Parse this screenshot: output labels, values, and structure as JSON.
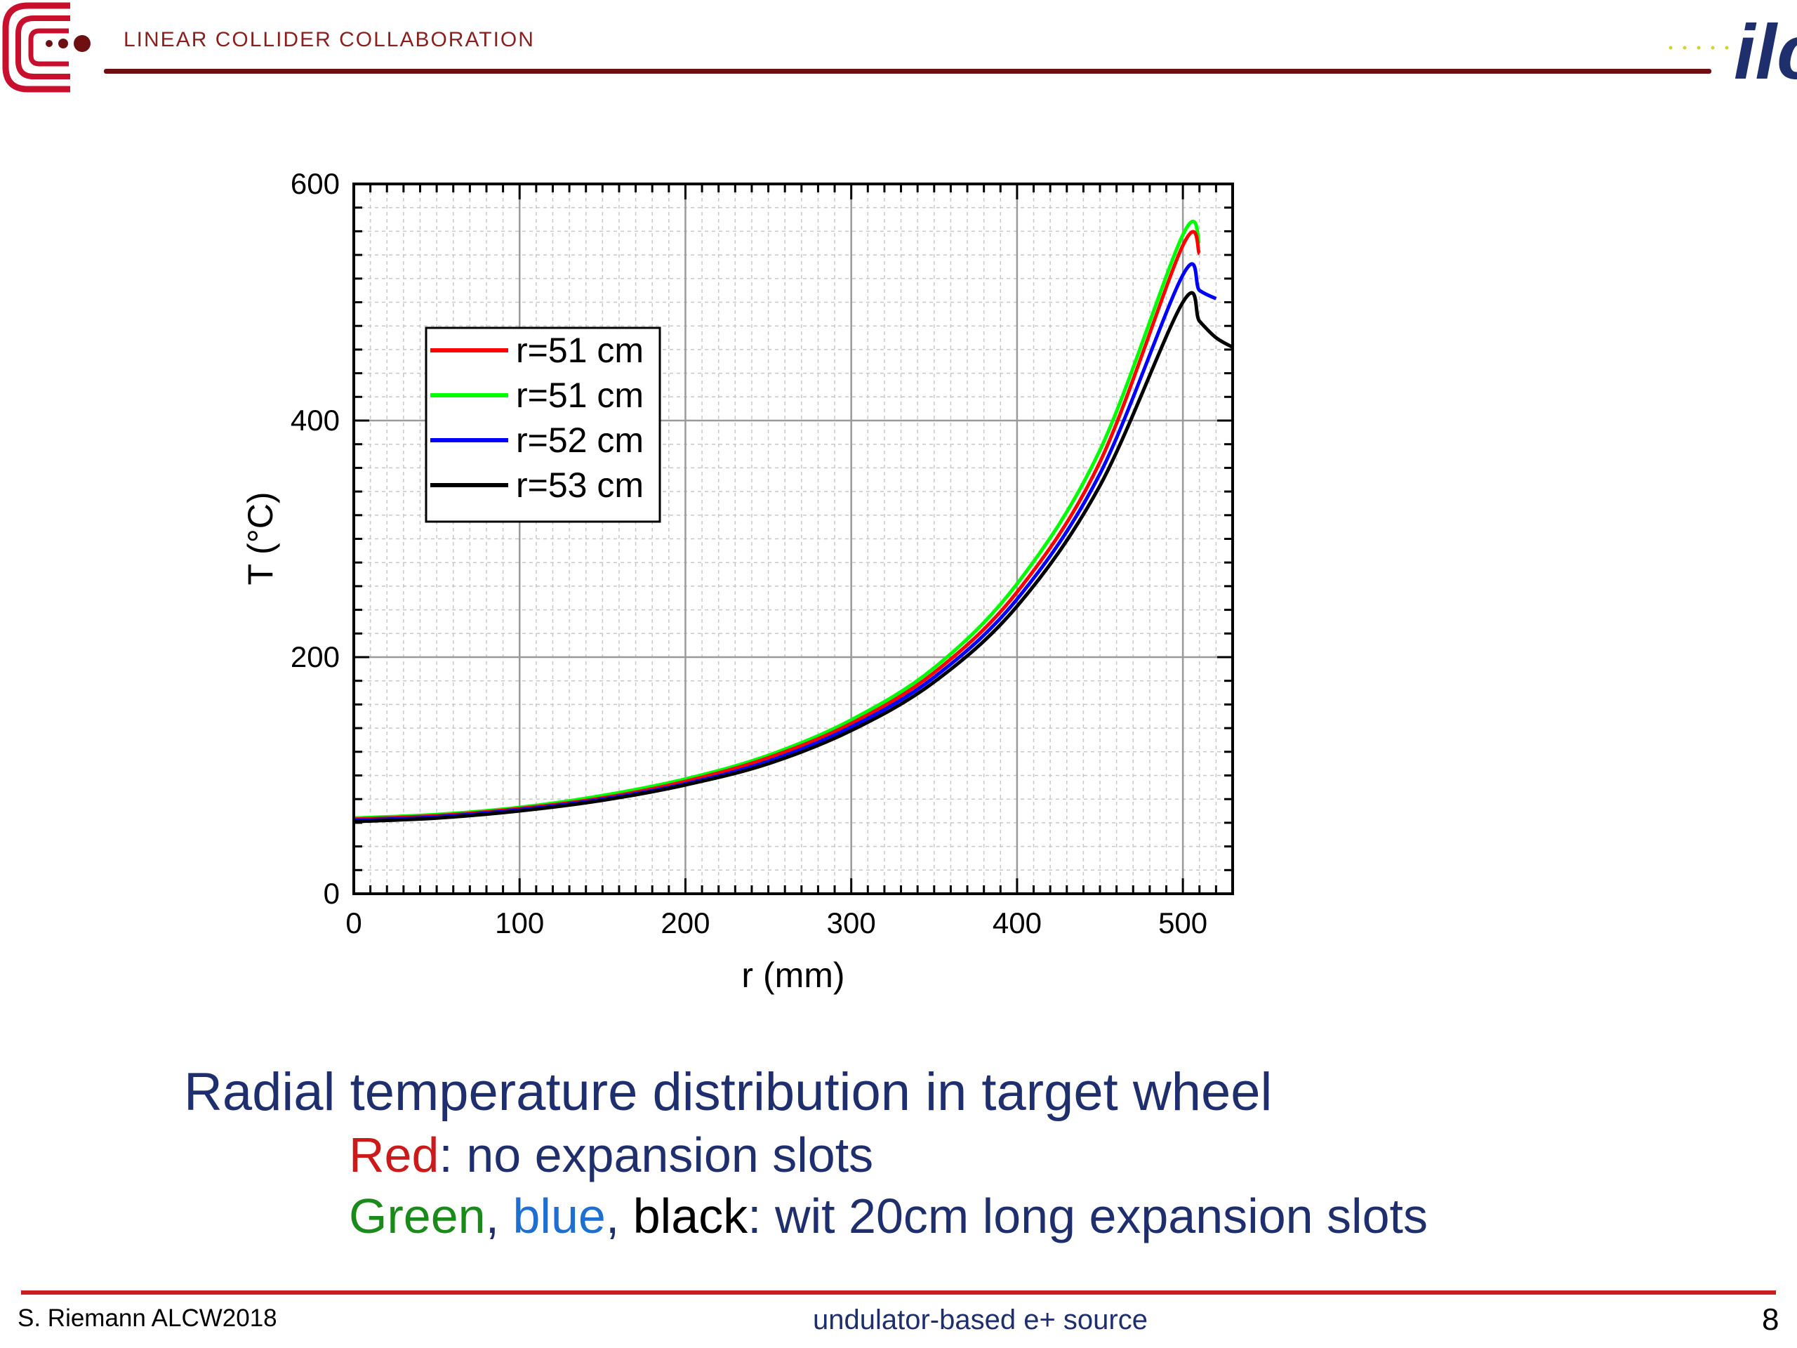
{
  "header": {
    "org_name": "LINEAR COLLIDER COLLABORATION",
    "logo_left": "lcc-logo",
    "logo_right": "ilc-logo",
    "logo_right_text": "ilc",
    "brand_color": "#8a1f1f",
    "rule_color": "#6e0f12"
  },
  "chart_data": {
    "type": "line",
    "title": "",
    "xlabel": "r (mm)",
    "ylabel": "T (°C)",
    "xlim": [
      0,
      530
    ],
    "ylim": [
      0,
      600
    ],
    "xticks": [
      0,
      100,
      200,
      300,
      400,
      500
    ],
    "yticks": [
      0,
      200,
      400,
      600
    ],
    "grid": true,
    "legend_position": "top-left",
    "series": [
      {
        "name": "r=51 cm",
        "color": "#ff0000",
        "x": [
          0,
          50,
          100,
          150,
          200,
          250,
          300,
          350,
          400,
          450,
          500,
          510
        ],
        "y": [
          63,
          66,
          72,
          81,
          95,
          115,
          144,
          187,
          255,
          365,
          548,
          541
        ]
      },
      {
        "name": "r=51 cm",
        "color": "#00ff00",
        "x": [
          0,
          50,
          100,
          150,
          200,
          250,
          300,
          350,
          400,
          450,
          500,
          510
        ],
        "y": [
          64,
          67,
          73,
          83,
          97,
          117,
          147,
          191,
          262,
          375,
          557,
          549
        ]
      },
      {
        "name": "r=52 cm",
        "color": "#0000ff",
        "x": [
          0,
          50,
          100,
          150,
          200,
          250,
          300,
          350,
          400,
          450,
          500,
          510,
          520
        ],
        "y": [
          62,
          65,
          71,
          80,
          93,
          112,
          141,
          183,
          249,
          355,
          523,
          510,
          503
        ]
      },
      {
        "name": "r=53 cm",
        "color": "#000000",
        "x": [
          0,
          50,
          100,
          150,
          200,
          250,
          300,
          350,
          400,
          450,
          500,
          510,
          520,
          530
        ],
        "y": [
          61,
          64,
          70,
          79,
          92,
          110,
          138,
          179,
          243,
          345,
          500,
          484,
          470,
          462
        ]
      }
    ]
  },
  "caption": {
    "title": "Radial temperature distribution in target wheel",
    "line1_colored": "Red",
    "line1_rest": ": no expansion slots",
    "line2_green": "Green",
    "line2_sep1": ", ",
    "line2_blue": "blue",
    "line2_sep2": ", ",
    "line2_black": "black",
    "line2_rest": ": wit 20cm long expansion slots",
    "colors": {
      "red": "#cc1a1a",
      "green": "#1a8a1a",
      "blue": "#1f6fd0",
      "black": "#000000",
      "text": "#1f2f6e"
    }
  },
  "footer": {
    "left": "S. Riemann ALCW2018",
    "center": "undulator-based e+ source",
    "page": "8",
    "rule_color": "#c81e1e"
  }
}
